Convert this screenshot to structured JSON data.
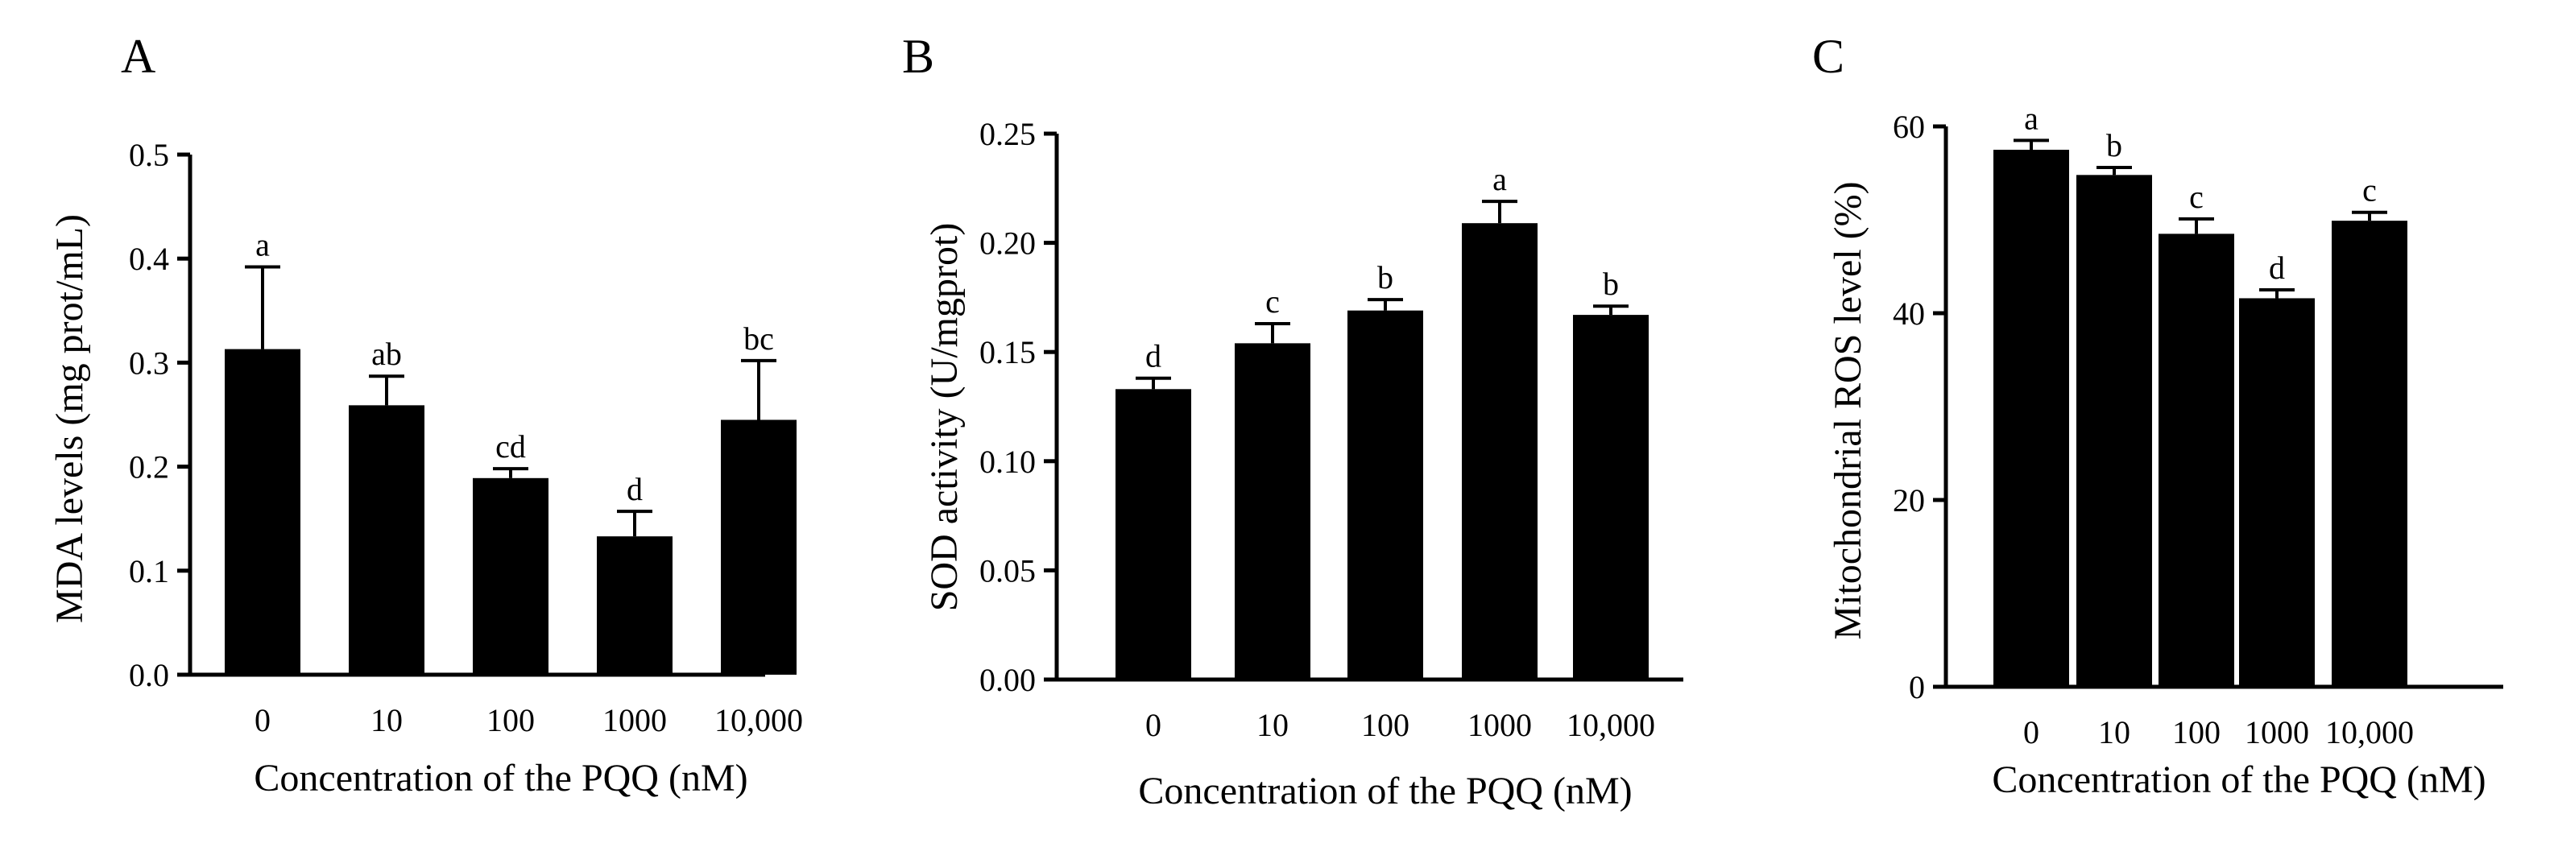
{
  "figure": {
    "colors": {
      "bar": "#000000",
      "axis": "#000000",
      "background": "#ffffff"
    }
  },
  "chart_data": [
    {
      "type": "bar",
      "panel": "A",
      "title": "",
      "categories": [
        "0",
        "10",
        "100",
        "1000",
        "10,000"
      ],
      "values": [
        0.313,
        0.259,
        0.189,
        0.133,
        0.245
      ],
      "errors": [
        0.079,
        0.028,
        0.009,
        0.024,
        0.057
      ],
      "significance": [
        "a",
        "ab",
        "cd",
        "d",
        "bc"
      ],
      "xlabel": "Concentration of the PQQ (nM)",
      "ylabel": "MDA levels (mg prot/mL)",
      "ylim": [
        0,
        0.5
      ],
      "yticks": [
        "0.0",
        "0.1",
        "0.2",
        "0.3",
        "0.4",
        "0.5"
      ],
      "grid": false
    },
    {
      "type": "bar",
      "panel": "B",
      "title": "",
      "categories": [
        "0",
        "10",
        "100",
        "1000",
        "10,000"
      ],
      "values": [
        0.133,
        0.154,
        0.169,
        0.209,
        0.167
      ],
      "errors": [
        0.005,
        0.009,
        0.005,
        0.01,
        0.004
      ],
      "significance": [
        "d",
        "c",
        "b",
        "a",
        "b"
      ],
      "xlabel": "Concentration of the PQQ (nM)",
      "ylabel": "SOD activity (U/mgprot)",
      "ylim": [
        0,
        0.25
      ],
      "yticks": [
        "0.00",
        "0.05",
        "0.10",
        "0.15",
        "0.20",
        "0.25"
      ],
      "grid": false
    },
    {
      "type": "bar",
      "panel": "C",
      "title": "",
      "categories": [
        "0",
        "10",
        "100",
        "1000",
        "10,000"
      ],
      "values": [
        57.5,
        54.8,
        48.5,
        41.6,
        49.9
      ],
      "errors": [
        1.0,
        0.8,
        1.6,
        0.9,
        0.9
      ],
      "significance": [
        "a",
        "b",
        "c",
        "d",
        "c"
      ],
      "xlabel": "Concentration of the PQQ (nM)",
      "ylabel": "Mitochondrial ROS level (%)",
      "ylim": [
        0,
        60
      ],
      "yticks": [
        "0",
        "20",
        "40",
        "60"
      ],
      "grid": false
    }
  ]
}
